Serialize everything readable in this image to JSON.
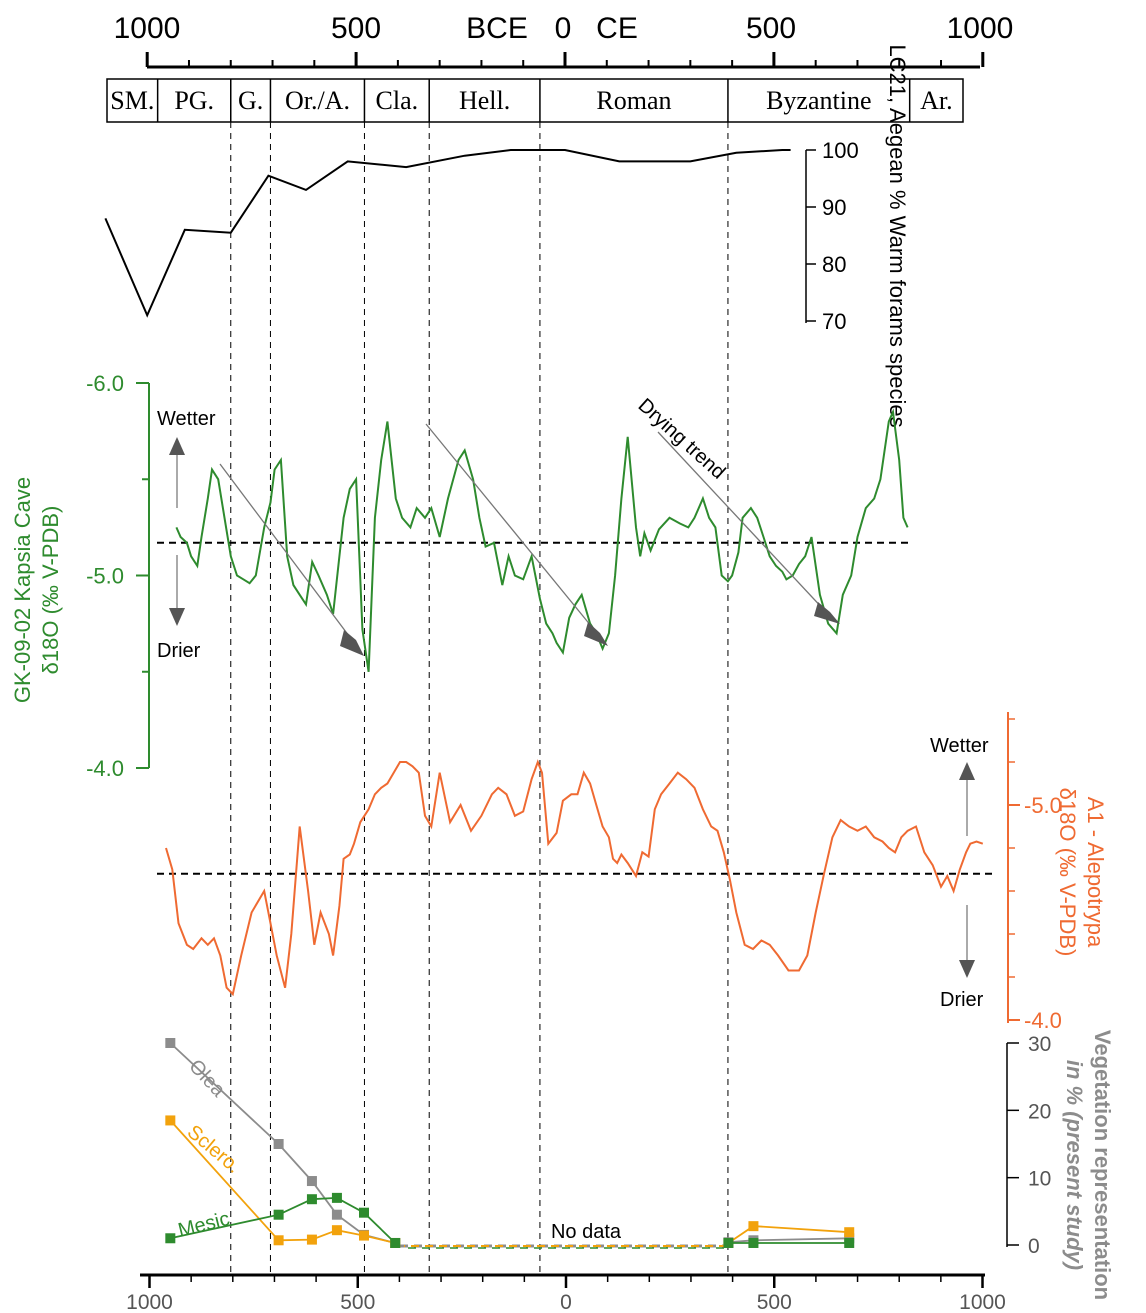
{
  "colors": {
    "black": "#000000",
    "green": "#2e8b2e",
    "orange": "#ef6a32",
    "grey": "#8c8c8c",
    "gold": "#f2a20c"
  },
  "chart_data": [
    {
      "type": "table",
      "name": "top-time-axis",
      "tick_labels": [
        "1000",
        "500",
        "BCE",
        "0",
        "CE",
        "500",
        "1000"
      ],
      "periods": [
        {
          "label": "SM.",
          "start": -1100,
          "end": -975
        },
        {
          "label": "PG.",
          "start": -975,
          "end": -800
        },
        {
          "label": "G.",
          "start": -800,
          "end": -705
        },
        {
          "label": "Or./A.",
          "start": -705,
          "end": -480
        },
        {
          "label": "Cla.",
          "start": -480,
          "end": -325
        },
        {
          "label": "Hell.",
          "start": -325,
          "end": -60
        },
        {
          "label": "Roman",
          "start": -60,
          "end": 390
        },
        {
          "label": "Byzantine",
          "start": 390,
          "end": 825
        },
        {
          "label": "Ar.",
          "start": 825,
          "end": 960
        }
      ],
      "boundaries": [
        -800,
        -705,
        -480,
        -325,
        -60,
        390
      ]
    },
    {
      "type": "line",
      "name": "lc21-warm-forams",
      "ylabel": "LC21, Aegean % Warm forams species",
      "ylim": [
        70,
        100
      ],
      "yticks": [
        "100",
        "90",
        "80",
        "70"
      ],
      "x": [
        -1100,
        -1000,
        -910,
        -800,
        -710,
        -620,
        -520,
        -380,
        -240,
        -130,
        0,
        130,
        300,
        410,
        520,
        540
      ],
      "y": [
        88,
        71,
        86,
        85.5,
        95.5,
        93,
        98,
        97,
        99,
        100,
        100,
        98,
        98,
        99.5,
        100,
        100
      ]
    },
    {
      "type": "line",
      "name": "gk-09-02-kapsia-cave",
      "ylabel_line1": "GK-09-02 Kapsia Cave",
      "ylabel_line2": "δ18O (‰ V-PDB)",
      "ylim": [
        -4.0,
        -6.0
      ],
      "yticks": [
        "-6.0",
        "-5.0",
        "-4.0"
      ],
      "baseline": -5.17,
      "annotations": {
        "wetter": "Wetter",
        "drier": "Drier",
        "trend": "Drying trend"
      },
      "x": [
        -930,
        -920,
        -905,
        -895,
        -880,
        -870,
        -855,
        -845,
        -830,
        -815,
        -800,
        -785,
        -770,
        -755,
        -740,
        -720,
        -705,
        -695,
        -680,
        -665,
        -650,
        -635,
        -620,
        -605,
        -590,
        -570,
        -555,
        -530,
        -515,
        -500,
        -485,
        -470,
        -455,
        -440,
        -425,
        -405,
        -390,
        -370,
        -355,
        -335,
        -320,
        -300,
        -280,
        -255,
        -240,
        -220,
        -205,
        -190,
        -170,
        -150,
        -135,
        -120,
        -100,
        -80,
        -60,
        -45,
        -30,
        -20,
        -5,
        10,
        25,
        40,
        60,
        75,
        90,
        105,
        120,
        135,
        150,
        170,
        180,
        190,
        205,
        225,
        250,
        275,
        295,
        310,
        330,
        345,
        360,
        375,
        390,
        400,
        415,
        425,
        445,
        460,
        475,
        490,
        505,
        520,
        530,
        545,
        560,
        575,
        590,
        610,
        630,
        650,
        665,
        685,
        700,
        720,
        740,
        755,
        775,
        785,
        800,
        810,
        820
      ],
      "y": [
        -5.25,
        -5.2,
        -5.17,
        -5.1,
        -5.05,
        -5.2,
        -5.4,
        -5.55,
        -5.5,
        -5.3,
        -5.1,
        -5.0,
        -4.98,
        -4.96,
        -5.0,
        -5.25,
        -5.38,
        -5.55,
        -5.6,
        -5.1,
        -4.95,
        -4.9,
        -4.85,
        -5.07,
        -5.0,
        -4.9,
        -4.8,
        -5.3,
        -5.45,
        -5.5,
        -4.72,
        -4.5,
        -5.3,
        -5.6,
        -5.8,
        -5.4,
        -5.3,
        -5.25,
        -5.35,
        -5.3,
        -5.35,
        -5.2,
        -5.4,
        -5.6,
        -5.65,
        -5.5,
        -5.3,
        -5.15,
        -5.17,
        -4.95,
        -5.1,
        -5.0,
        -4.98,
        -5.1,
        -4.88,
        -4.75,
        -4.7,
        -4.65,
        -4.6,
        -4.78,
        -4.85,
        -4.9,
        -4.75,
        -4.7,
        -4.62,
        -4.7,
        -5.0,
        -5.4,
        -5.72,
        -5.25,
        -5.1,
        -5.22,
        -5.13,
        -5.24,
        -5.3,
        -5.27,
        -5.25,
        -5.3,
        -5.4,
        -5.3,
        -5.25,
        -5.0,
        -4.97,
        -5.0,
        -5.12,
        -5.3,
        -5.35,
        -5.3,
        -5.2,
        -5.1,
        -5.05,
        -5.02,
        -4.98,
        -5.0,
        -5.06,
        -5.1,
        -5.2,
        -4.9,
        -4.75,
        -4.7,
        -4.9,
        -5.0,
        -5.2,
        -5.35,
        -5.4,
        -5.5,
        -5.8,
        -5.85,
        -5.6,
        -5.3,
        -5.25
      ]
    },
    {
      "type": "line",
      "name": "a1-alepotrypa",
      "ylabel_line1": "A1 - Alepotrypa",
      "ylabel_line2": "δ18O (‰ V-PDB)",
      "ylim": [
        -4.0,
        -5.5
      ],
      "yticks": [
        "-5.0",
        "-4.0"
      ],
      "baseline": -4.68,
      "annotations": {
        "wetter": "Wetter",
        "drier": "Drier"
      },
      "x": [
        -955,
        -940,
        -925,
        -905,
        -890,
        -870,
        -855,
        -840,
        -825,
        -810,
        -795,
        -775,
        -750,
        -720,
        -705,
        -690,
        -670,
        -655,
        -635,
        -615,
        -600,
        -585,
        -565,
        -555,
        -540,
        -530,
        -515,
        -505,
        -490,
        -470,
        -455,
        -440,
        -425,
        -410,
        -395,
        -380,
        -365,
        -350,
        -335,
        -320,
        -300,
        -275,
        -250,
        -225,
        -200,
        -175,
        -160,
        -140,
        -120,
        -100,
        -80,
        -65,
        -55,
        -40,
        -20,
        -5,
        15,
        30,
        45,
        60,
        75,
        90,
        105,
        115,
        125,
        135,
        150,
        170,
        185,
        200,
        215,
        230,
        250,
        270,
        290,
        310,
        330,
        350,
        365,
        380,
        395,
        410,
        430,
        450,
        470,
        490,
        510,
        535,
        560,
        580,
        600,
        620,
        640,
        660,
        680,
        700,
        720,
        740,
        760,
        775,
        790,
        805,
        820,
        840,
        860,
        880,
        900,
        915,
        930,
        945,
        960,
        970,
        985,
        1000
      ],
      "y": [
        -4.8,
        -4.7,
        -4.45,
        -4.35,
        -4.33,
        -4.38,
        -4.35,
        -4.38,
        -4.3,
        -4.15,
        -4.12,
        -4.3,
        -4.5,
        -4.6,
        -4.45,
        -4.3,
        -4.15,
        -4.4,
        -4.9,
        -4.6,
        -4.35,
        -4.5,
        -4.4,
        -4.3,
        -4.53,
        -4.75,
        -4.77,
        -4.82,
        -4.92,
        -4.98,
        -5.05,
        -5.08,
        -5.1,
        -5.15,
        -5.2,
        -5.2,
        -5.18,
        -5.15,
        -4.95,
        -4.9,
        -5.15,
        -4.92,
        -5.0,
        -4.88,
        -4.95,
        -5.05,
        -5.08,
        -5.05,
        -4.95,
        -4.97,
        -5.12,
        -5.2,
        -5.15,
        -4.82,
        -4.87,
        -5.02,
        -5.05,
        -5.05,
        -5.15,
        -5.1,
        -5.0,
        -4.9,
        -4.85,
        -4.75,
        -4.73,
        -4.77,
        -4.73,
        -4.67,
        -4.78,
        -4.76,
        -4.98,
        -5.05,
        -5.1,
        -5.15,
        -5.12,
        -5.08,
        -4.98,
        -4.9,
        -4.88,
        -4.78,
        -4.65,
        -4.5,
        -4.35,
        -4.33,
        -4.37,
        -4.35,
        -4.3,
        -4.23,
        -4.23,
        -4.3,
        -4.5,
        -4.68,
        -4.85,
        -4.93,
        -4.9,
        -4.88,
        -4.9,
        -4.85,
        -4.83,
        -4.8,
        -4.78,
        -4.85,
        -4.88,
        -4.9,
        -4.78,
        -4.72,
        -4.62,
        -4.67,
        -4.6,
        -4.7,
        -4.78,
        -4.82,
        -4.83,
        -4.82
      ]
    },
    {
      "type": "line",
      "name": "vegetation-representation",
      "ylabel_line1": "Vegetation representation",
      "ylabel_line2": "in % (present study)",
      "ylim": [
        0,
        30
      ],
      "yticks": [
        "30",
        "20",
        "10",
        "0"
      ],
      "xlabels": [
        "1000",
        "500",
        "0",
        "500",
        "1000"
      ],
      "no_data_label": "No data",
      "series": [
        {
          "name": "Olea",
          "x": [
            -950,
            -690,
            -610,
            -550,
            -485,
            -410,
            390,
            450,
            680
          ],
          "y": [
            30,
            15,
            9.5,
            4.5,
            1.5,
            0.3,
            0.4,
            0.7,
            1
          ]
        },
        {
          "name": "Sclero.",
          "x": [
            -950,
            -690,
            -610,
            -550,
            -485,
            -410,
            390,
            450,
            680
          ],
          "y": [
            18.5,
            0.7,
            0.8,
            2.2,
            1.4,
            0.3,
            0.3,
            2.8,
            1.9
          ]
        },
        {
          "name": "Mesic",
          "x": [
            -950,
            -690,
            -610,
            -550,
            -485,
            -410,
            390,
            450,
            680
          ],
          "y": [
            1,
            4.5,
            6.8,
            7,
            4.8,
            0.3,
            0.3,
            0.3,
            0.3
          ]
        }
      ]
    }
  ]
}
